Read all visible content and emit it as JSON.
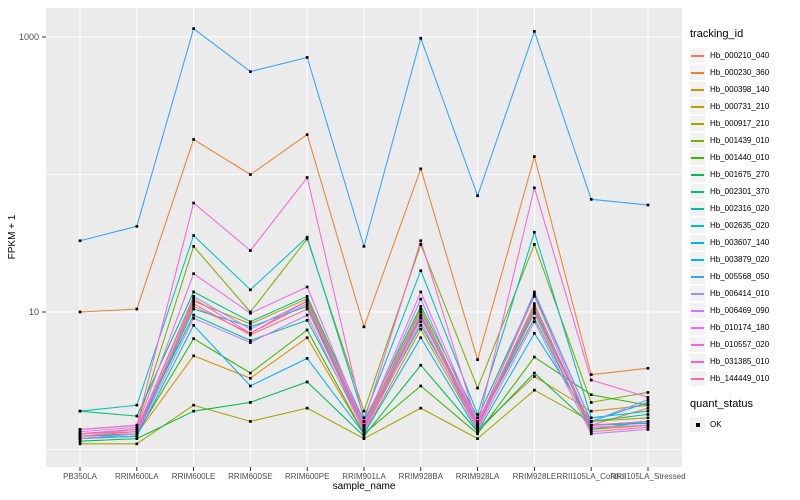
{
  "chart_data": {
    "type": "line",
    "title": "",
    "xlabel": "sample_name",
    "ylabel": "FPKM + 1",
    "y_scale": "log10",
    "ylim": [
      0.75,
      1600
    ],
    "grid": "on",
    "panel_bg": "#EBEBEB",
    "grid_color": "#FFFFFF",
    "tick_text_color": "#4D4D4D",
    "tick_mark_color": "#333333",
    "point_color": "#000000",
    "point_shape": "square",
    "legend_key_bg": "#F2F2F2",
    "y_major_ticks": [
      {
        "value": 10,
        "label": "10"
      },
      {
        "value": 1000,
        "label": "1000"
      }
    ],
    "y_minor_gridlines": [
      1,
      100
    ],
    "categories": [
      "PB350LA",
      "RRIM600LA",
      "RRIM600LE",
      "RRIM600SE",
      "RRIM600PE",
      "RRIM901LA",
      "RRIM928BA",
      "RRIM928LA",
      "RRIM928LE",
      "RRII105LA_Control",
      "RRII105LA_Stressed"
    ],
    "legend_title": "tracking_id",
    "legend2_title": "quant_status",
    "legend2_items": [
      {
        "label": "OK",
        "marker": "black-square"
      }
    ],
    "series": [
      {
        "name": "Hb_000210_040",
        "color": "#F8766D",
        "values": [
          1.3,
          1.35,
          11,
          7,
          11.5,
          1.4,
          9,
          1.6,
          10,
          1.5,
          2.0
        ]
      },
      {
        "name": "Hb_000230_360",
        "color": "#EA8331",
        "values": [
          10,
          10.5,
          180,
          100,
          195,
          7.8,
          110,
          4.5,
          135,
          3.5,
          3.9
        ]
      },
      {
        "name": "Hb_000398_140",
        "color": "#D89000",
        "values": [
          1.25,
          1.3,
          4.8,
          3.3,
          6.5,
          1.3,
          7.5,
          1.4,
          3.4,
          1.9,
          2.1
        ]
      },
      {
        "name": "Hb_000731_210",
        "color": "#C09B00",
        "values": [
          1.2,
          1.25,
          12,
          8.2,
          12.5,
          1.5,
          10.5,
          1.5,
          11.5,
          1.4,
          1.5
        ]
      },
      {
        "name": "Hb_000917_210",
        "color": "#A3A500",
        "values": [
          1.1,
          1.1,
          2.1,
          1.6,
          2.0,
          1.2,
          2.0,
          1.2,
          2.7,
          1.6,
          1.7
        ]
      },
      {
        "name": "Hb_001439_010",
        "color": "#7CAE00",
        "values": [
          1.4,
          1.5,
          30,
          10,
          34,
          1.9,
          31,
          2.8,
          31,
          2.2,
          2.6
        ]
      },
      {
        "name": "Hb_001440_010",
        "color": "#39B600",
        "values": [
          1.2,
          1.3,
          6.4,
          3.6,
          7.4,
          1.3,
          2.9,
          1.3,
          4.7,
          2.5,
          2.1
        ]
      },
      {
        "name": "Hb_001675_270",
        "color": "#00BB4E",
        "values": [
          1.15,
          1.2,
          1.9,
          2.2,
          3.1,
          1.25,
          4.1,
          1.35,
          3.6,
          1.5,
          1.6
        ]
      },
      {
        "name": "Hb_002301_370",
        "color": "#00BF7D",
        "values": [
          1.9,
          1.75,
          14,
          8.5,
          13,
          1.6,
          11,
          1.7,
          13.5,
          1.6,
          1.8
        ]
      },
      {
        "name": "Hb_002316_020",
        "color": "#00C1A3",
        "values": [
          1.3,
          1.4,
          9.5,
          6.2,
          8.7,
          1.45,
          8,
          1.5,
          9,
          1.4,
          1.6
        ]
      },
      {
        "name": "Hb_002635_020",
        "color": "#00BFC4",
        "values": [
          1.9,
          2.1,
          36,
          14.5,
          35,
          1.7,
          20,
          1.8,
          38,
          1.7,
          1.9
        ]
      },
      {
        "name": "Hb_003607_140",
        "color": "#00BAE0",
        "values": [
          1.25,
          1.3,
          10.5,
          7.8,
          11,
          1.4,
          9.5,
          1.45,
          10.5,
          1.5,
          1.55
        ]
      },
      {
        "name": "Hb_003879_020",
        "color": "#00B0F6",
        "values": [
          1.2,
          1.25,
          8,
          2.9,
          4.6,
          1.3,
          6.5,
          1.35,
          7,
          1.6,
          2.2
        ]
      },
      {
        "name": "Hb_005568_050",
        "color": "#35A2FF",
        "values": [
          33,
          42,
          1150,
          560,
          710,
          30,
          980,
          70,
          1100,
          66,
          60
        ]
      },
      {
        "name": "Hb_006414_010",
        "color": "#9590FF",
        "values": [
          1.3,
          1.4,
          13,
          7.5,
          12,
          1.5,
          12.4,
          1.5,
          14,
          1.6,
          2.3
        ]
      },
      {
        "name": "Hb_006469_090",
        "color": "#C77CFF",
        "values": [
          1.2,
          1.3,
          9,
          6.0,
          9.5,
          1.35,
          8.5,
          1.4,
          8.5,
          1.3,
          1.4
        ]
      },
      {
        "name": "Hb_010174_180",
        "color": "#E76BF3",
        "values": [
          1.35,
          1.45,
          19,
          9.8,
          15.2,
          1.5,
          14,
          1.55,
          13,
          1.45,
          1.5
        ]
      },
      {
        "name": "Hb_010557_020",
        "color": "#FA62DB",
        "values": [
          1.4,
          1.5,
          62,
          28,
          95,
          1.6,
          33,
          1.5,
          80,
          3.2,
          2.4
        ]
      },
      {
        "name": "Hb_031385_010",
        "color": "#FF62BC",
        "values": [
          1.3,
          1.4,
          12.5,
          7.0,
          12,
          1.45,
          10,
          1.5,
          11,
          1.5,
          1.6
        ]
      },
      {
        "name": "Hb_144449_010",
        "color": "#FF6A98",
        "values": [
          1.25,
          1.35,
          11.5,
          6.8,
          10.5,
          1.4,
          9.2,
          1.45,
          9.8,
          1.35,
          1.45
        ]
      }
    ]
  }
}
